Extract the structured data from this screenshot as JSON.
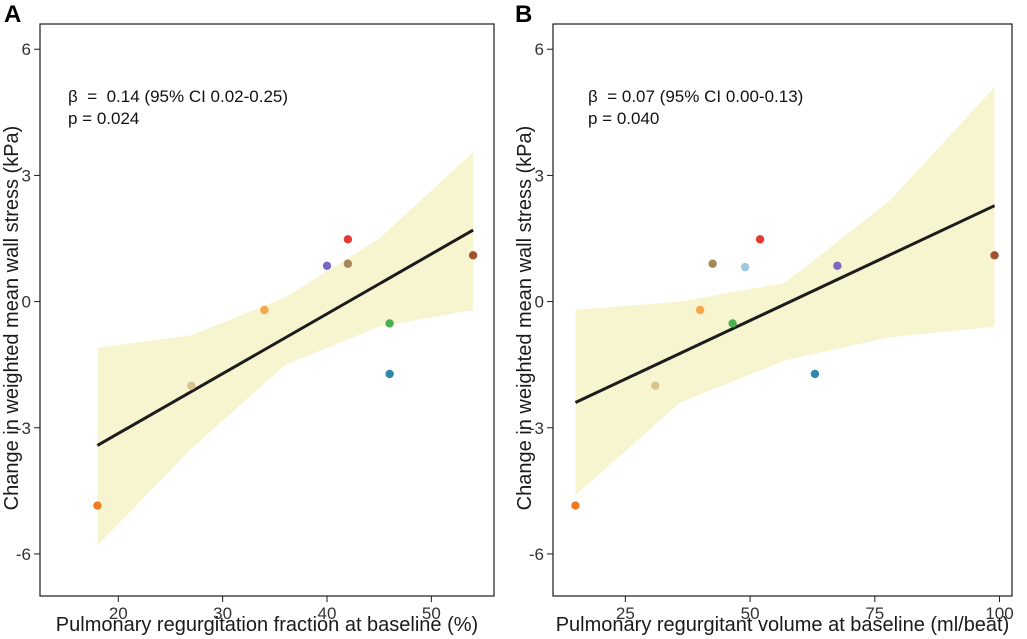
{
  "chart_data": [
    {
      "type": "scatter",
      "panel_label": "A",
      "xlabel": "Pulmonary regurgitation fraction at baseline (%)",
      "ylabel": "Change in weighted mean wall stress (kPa)",
      "xlim": [
        12.5,
        56
      ],
      "ylim": [
        -7,
        6.6
      ],
      "xticks": [
        20,
        30,
        40,
        50
      ],
      "yticks": [
        -6,
        -3,
        0,
        3,
        6
      ],
      "annotation": [
        "β  =  0.14 (95% CI 0.02-0.25)",
        "p = 0.024"
      ],
      "regression": {
        "x": [
          18,
          54
        ],
        "y": [
          -3.42,
          1.7
        ]
      },
      "ci_band": {
        "x": [
          18,
          27,
          36,
          45,
          54
        ],
        "lower": [
          -5.8,
          -3.5,
          -1.5,
          -0.6,
          -0.2
        ],
        "upper": [
          -1.1,
          -0.8,
          0.1,
          1.5,
          3.55
        ]
      },
      "points": [
        {
          "x": 18,
          "y": -4.85,
          "color": "#f07a26"
        },
        {
          "x": 27,
          "y": -2.0,
          "color": "#d9c48e"
        },
        {
          "x": 34,
          "y": -0.2,
          "color": "#f4a84a"
        },
        {
          "x": 40,
          "y": 0.85,
          "color": "#7b68c2"
        },
        {
          "x": 42,
          "y": 0.9,
          "color": "#a6875c"
        },
        {
          "x": 42,
          "y": 1.48,
          "color": "#e53935"
        },
        {
          "x": 46,
          "y": -0.52,
          "color": "#4caf50"
        },
        {
          "x": 46,
          "y": -1.72,
          "color": "#2e86ab"
        },
        {
          "x": 54,
          "y": 1.1,
          "color": "#a0522d"
        }
      ]
    },
    {
      "type": "scatter",
      "panel_label": "B",
      "xlabel": "Pulmonary regurgitant volume at baseline (ml/beat)",
      "ylabel": "Change in weighted mean wall stress (kPa)",
      "xlim": [
        10.5,
        102.5
      ],
      "ylim": [
        -7,
        6.6
      ],
      "xticks": [
        25,
        50,
        75,
        100
      ],
      "yticks": [
        -6,
        -3,
        0,
        3,
        6
      ],
      "annotation": [
        "β  = 0.07 (95% CI 0.00-0.13)",
        "p = 0.040"
      ],
      "regression": {
        "x": [
          15,
          99
        ],
        "y": [
          -2.4,
          2.28
        ]
      },
      "ci_band": {
        "x": [
          15,
          36,
          57,
          78,
          99
        ],
        "lower": [
          -4.6,
          -2.4,
          -1.4,
          -0.85,
          -0.6
        ],
        "upper": [
          -0.2,
          0.0,
          0.45,
          2.4,
          5.1
        ]
      },
      "points": [
        {
          "x": 15,
          "y": -4.85,
          "color": "#f07a26"
        },
        {
          "x": 31,
          "y": -2.0,
          "color": "#d9c48e"
        },
        {
          "x": 40,
          "y": -0.2,
          "color": "#f4a84a"
        },
        {
          "x": 42.5,
          "y": 0.9,
          "color": "#a6875c"
        },
        {
          "x": 46.5,
          "y": -0.52,
          "color": "#4caf50"
        },
        {
          "x": 49,
          "y": 0.82,
          "color": "#9ecae1"
        },
        {
          "x": 52,
          "y": 1.48,
          "color": "#e53935"
        },
        {
          "x": 63,
          "y": -1.72,
          "color": "#2e86ab"
        },
        {
          "x": 67.5,
          "y": 0.85,
          "color": "#7b68c2"
        },
        {
          "x": 99,
          "y": 1.1,
          "color": "#a0522d"
        }
      ]
    }
  ],
  "style": {
    "band_color": "#f7f5cf",
    "line_color": "#1c1c1c",
    "frame_color": "#1a1a1a"
  }
}
